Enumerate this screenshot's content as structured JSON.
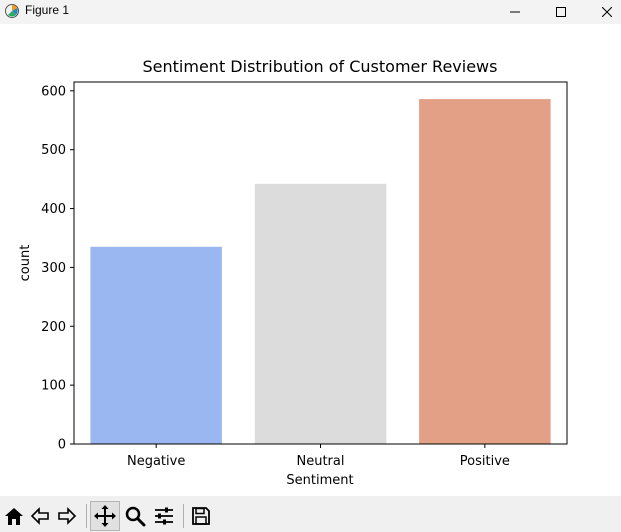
{
  "window": {
    "title": "Figure 1"
  },
  "toolbar": {
    "tools": [
      "home-icon",
      "back-arrow-icon",
      "forward-arrow-icon",
      "pan-icon",
      "zoom-icon",
      "configure-subplots-icon",
      "save-icon"
    ],
    "active_tool": "pan-icon"
  },
  "chart_data": {
    "type": "bar",
    "title": "Sentiment Distribution of Customer Reviews",
    "xlabel": "Sentiment",
    "ylabel": "count",
    "categories": [
      "Negative",
      "Neutral",
      "Positive"
    ],
    "values": [
      335,
      442,
      586
    ],
    "colors": [
      "#9bb7f1",
      "#dcdcdc",
      "#e4a086"
    ],
    "ylim": [
      0,
      615
    ],
    "yticks": [
      0,
      100,
      200,
      300,
      400,
      500,
      600
    ],
    "ytick_labels": [
      "0",
      "100",
      "200",
      "300",
      "400",
      "500",
      "600"
    ],
    "grid": false
  }
}
